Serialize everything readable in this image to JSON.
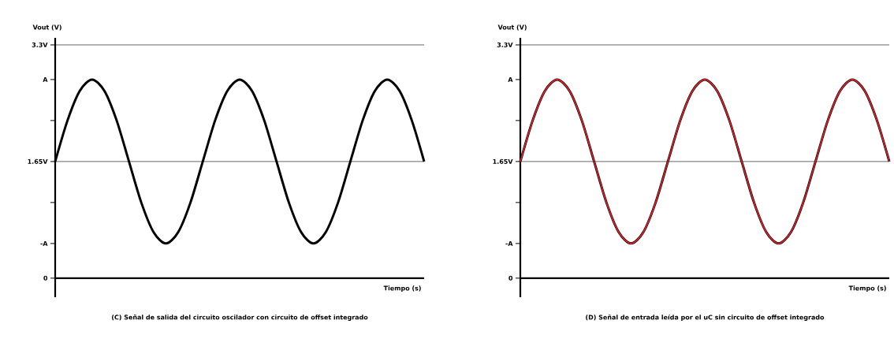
{
  "chart_data": [
    {
      "type": "line",
      "ylabel": "Vout (V)",
      "xlabel": "Tiempo (s)",
      "categories": [
        null,
        null,
        null,
        null,
        null,
        null,
        null,
        null,
        null,
        null,
        null,
        null,
        null,
        null,
        null,
        null,
        null,
        null,
        null,
        null,
        null,
        null,
        null,
        null,
        null,
        null,
        null,
        null,
        null,
        null,
        null
      ],
      "series": [
        {
          "color": "#000000",
          "values": [
            1.65,
            2.23,
            2.65,
            2.81,
            2.65,
            2.23,
            1.65,
            1.07,
            0.65,
            0.49,
            0.65,
            1.07,
            1.65,
            2.23,
            2.65,
            2.81,
            2.65,
            2.23,
            1.65,
            1.07,
            0.65,
            0.49,
            0.65,
            1.07,
            1.65,
            2.23,
            2.65,
            2.81,
            2.65,
            2.23,
            1.65
          ]
        }
      ],
      "ylim": [
        -0.27,
        3.4
      ],
      "yticks": [
        0,
        {
          "value": 0.49,
          "label": "-A"
        },
        {
          "value": 1.07,
          "label": null
        },
        {
          "value": 1.65,
          "label": "1.65V"
        },
        {
          "value": 2.23,
          "label": null
        },
        {
          "value": 2.81,
          "label": "A"
        },
        {
          "value": 3.3,
          "label": "3.3V"
        }
      ],
      "ref_lines": [
        {
          "axis": "y",
          "value": 3.3,
          "color": "#000000"
        },
        {
          "axis": "y",
          "value": 1.65,
          "color": "#000000"
        }
      ],
      "annotations": [
        "(C) Señal de salida del circuito oscilador con circuito de offset integrado"
      ],
      "grid": false,
      "marker": "none",
      "line_style": "solid"
    },
    {
      "type": "line",
      "ylabel": "Vout (V)",
      "xlabel": "Tiempo (s)",
      "categories": [
        null,
        null,
        null,
        null,
        null,
        null,
        null,
        null,
        null,
        null,
        null,
        null,
        null,
        null,
        null,
        null,
        null,
        null,
        null,
        null,
        null,
        null,
        null,
        null,
        null,
        null,
        null,
        null,
        null,
        null,
        null
      ],
      "series": [
        {
          "color": "#000000",
          "values": [
            1.65,
            2.23,
            2.65,
            2.81,
            2.65,
            2.23,
            1.65,
            1.07,
            0.65,
            0.49,
            0.65,
            1.07,
            1.65,
            2.23,
            2.65,
            2.81,
            2.65,
            2.23,
            1.65,
            1.07,
            0.65,
            0.49,
            0.65,
            1.07,
            1.65,
            2.23,
            2.65,
            2.81,
            2.65,
            2.23,
            1.65
          ]
        },
        {
          "color": "#e8212b",
          "values": [
            1.65,
            2.23,
            2.65,
            2.81,
            2.65,
            2.23,
            1.65,
            1.07,
            0.65,
            0.49,
            0.65,
            1.07,
            1.65,
            2.23,
            2.65,
            2.81,
            2.65,
            2.23,
            1.65,
            1.07,
            0.65,
            0.49,
            0.65,
            1.07,
            1.65,
            2.23,
            2.65,
            2.81,
            2.65,
            2.23,
            1.65
          ]
        }
      ],
      "ylim": [
        -0.27,
        3.4
      ],
      "yticks": [
        0,
        {
          "value": 0.49,
          "label": "-A"
        },
        {
          "value": 1.07,
          "label": null
        },
        {
          "value": 1.65,
          "label": "1.65V"
        },
        {
          "value": 2.23,
          "label": null
        },
        {
          "value": 2.81,
          "label": "A"
        },
        {
          "value": 3.3,
          "label": "3.3V"
        }
      ],
      "ref_lines": [
        {
          "axis": "y",
          "value": 3.3,
          "color": "#000000"
        },
        {
          "axis": "y",
          "value": 1.65,
          "color": "#000000"
        }
      ],
      "annotations": [
        "(D) Señal de entrada leída por el uC sin circuito de offset integrado"
      ],
      "grid": false,
      "marker": "none",
      "line_style": "solid"
    }
  ]
}
